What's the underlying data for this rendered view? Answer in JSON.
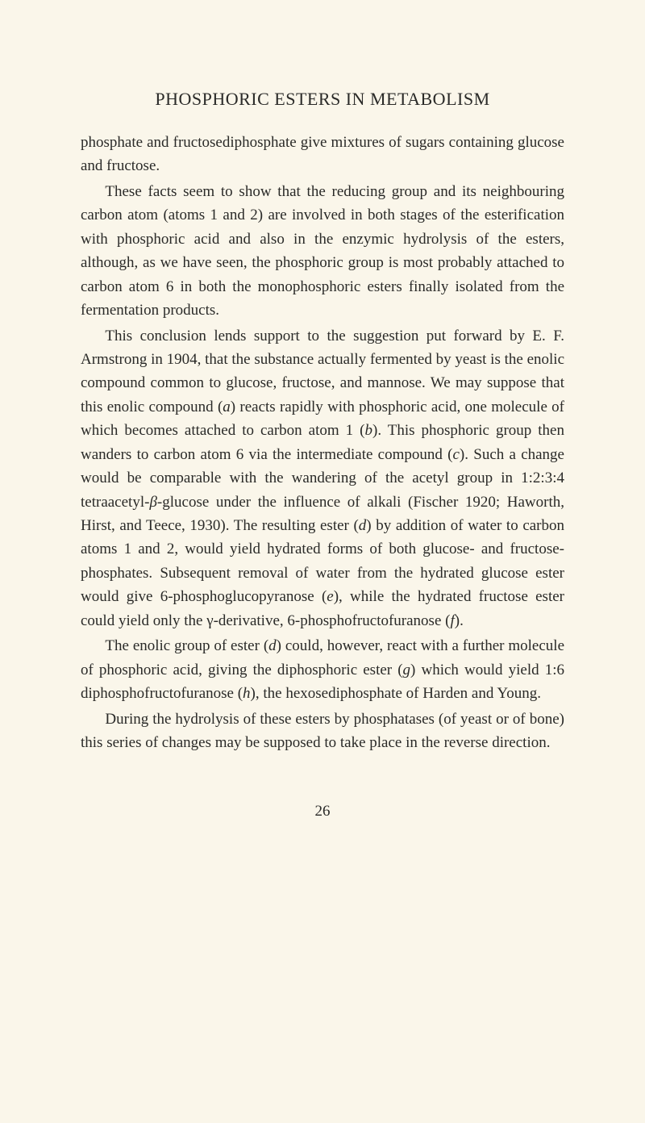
{
  "header": {
    "title": "PHOSPHORIC ESTERS IN METABOLISM"
  },
  "body": {
    "p1": "phosphate and fructosediphosphate give mixtures of sugars con­taining glucose and fructose.",
    "p2": "These facts seem to show that the reducing group and its neighbouring carbon atom (atoms 1 and 2) are involved in both stages of the esterification with phosphoric acid and also in the enzymic hydrolysis of the esters, although, as we have seen, the phosphoric group is most probably attached to carbon atom 6 in both the monophosphoric esters finally isolated from the fermen­tation products.",
    "p3_a": "This conclusion lends support to the suggestion put forward by E. F. Armstrong in 1904, that the substance actually fermented by yeast is the enolic compound common to glucose, fructose, and mannose.   We may suppose that this enolic compound (",
    "p3_i1": "a",
    "p3_b": ") reacts rapidly with phosphoric acid, one molecule of which be­comes attached to carbon atom 1 (",
    "p3_i2": "b",
    "p3_c": ").   This phosphoric group then wanders to carbon atom 6 via the intermediate compound (",
    "p3_i3": "c",
    "p3_d": ").   Such a change would be comparable with the wandering of the acetyl group in 1:2:3:4 tetraacetyl-",
    "p3_i4": "β",
    "p3_e": "-glucose under the influence of alkali (Fischer 1920; Haworth, Hirst, and Teece, 1930).   The resulting ester (",
    "p3_i5": "d",
    "p3_f": ") by addition of water to carbon atoms 1 and 2, would yield hydrated forms of both glucose- and fructose-phosphates.   Subsequent removal of water from the hydrated glucose ester would give 6-phosphoglucopyranose (",
    "p3_i6": "e",
    "p3_g": "), while the hydrated fructose ester could yield only the γ-deriva­tive, 6-phosphofructofuranose (",
    "p3_i7": "f",
    "p3_h": ").",
    "p4_a": "The enolic group of ester (",
    "p4_i1": "d",
    "p4_b": ") could, however, react with a fur­ther molecule of phosphoric acid, giving the diphosphoric ester (",
    "p4_i2": "g",
    "p4_c": ") which would yield 1:6 diphosphofructofuranose (",
    "p4_i3": "h",
    "p4_d": "), the hexosediphosphate of Harden and Young.",
    "p5": "During the hydrolysis of these esters by phosphatases (of yeast or of bone) this series of changes may be supposed to take place in the reverse direction."
  },
  "footer": {
    "page_number": "26"
  }
}
